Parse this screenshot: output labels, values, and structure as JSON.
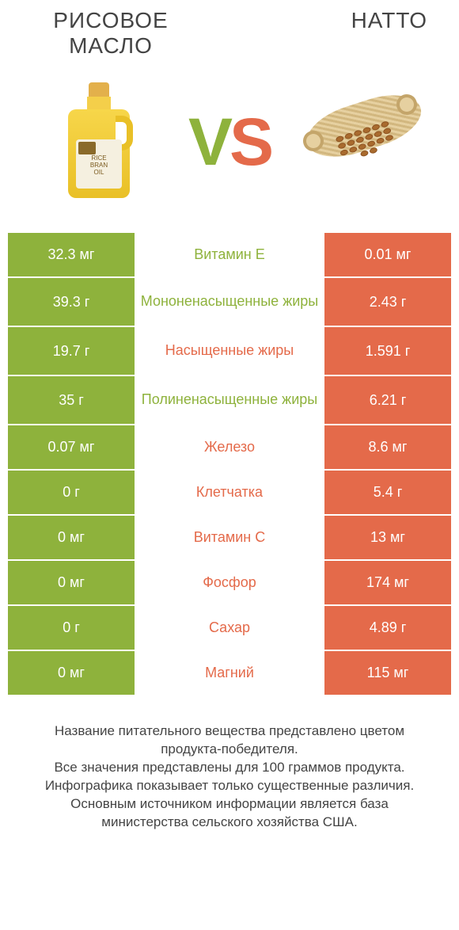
{
  "products": {
    "left": {
      "title": "РИСОВОЕ МАСЛО"
    },
    "right": {
      "title": "НАТТО"
    }
  },
  "vs": {
    "v": "V",
    "s": "S"
  },
  "colors": {
    "green": "#8eb23c",
    "orange": "#e46a4a",
    "background": "#ffffff",
    "text": "#444444"
  },
  "bottle_label": "RICE\nBRAN\nOIL",
  "rows": [
    {
      "left": "32.3 мг",
      "mid": "Витамин E",
      "right": "0.01 мг",
      "winner": "left"
    },
    {
      "left": "39.3 г",
      "mid": "Мононенасыщенные жиры",
      "right": "2.43 г",
      "winner": "left"
    },
    {
      "left": "19.7 г",
      "mid": "Насыщенные жиры",
      "right": "1.591 г",
      "winner": "right"
    },
    {
      "left": "35 г",
      "mid": "Полиненасыщенные жиры",
      "right": "6.21 г",
      "winner": "left"
    },
    {
      "left": "0.07 мг",
      "mid": "Железо",
      "right": "8.6 мг",
      "winner": "right"
    },
    {
      "left": "0 г",
      "mid": "Клетчатка",
      "right": "5.4 г",
      "winner": "right"
    },
    {
      "left": "0 мг",
      "mid": "Витамин C",
      "right": "13 мг",
      "winner": "right"
    },
    {
      "left": "0 мг",
      "mid": "Фосфор",
      "right": "174 мг",
      "winner": "right"
    },
    {
      "left": "0 г",
      "mid": "Сахар",
      "right": "4.89 г",
      "winner": "right"
    },
    {
      "left": "0 мг",
      "mid": "Магний",
      "right": "115 мг",
      "winner": "right"
    }
  ],
  "footer": "Название питательного вещества представлено цветом продукта-победителя.\nВсе значения представлены для 100 граммов продукта.\nИнфографика показывает только существенные различия.\nОсновным источником информации является база министерства сельского хозяйства США."
}
